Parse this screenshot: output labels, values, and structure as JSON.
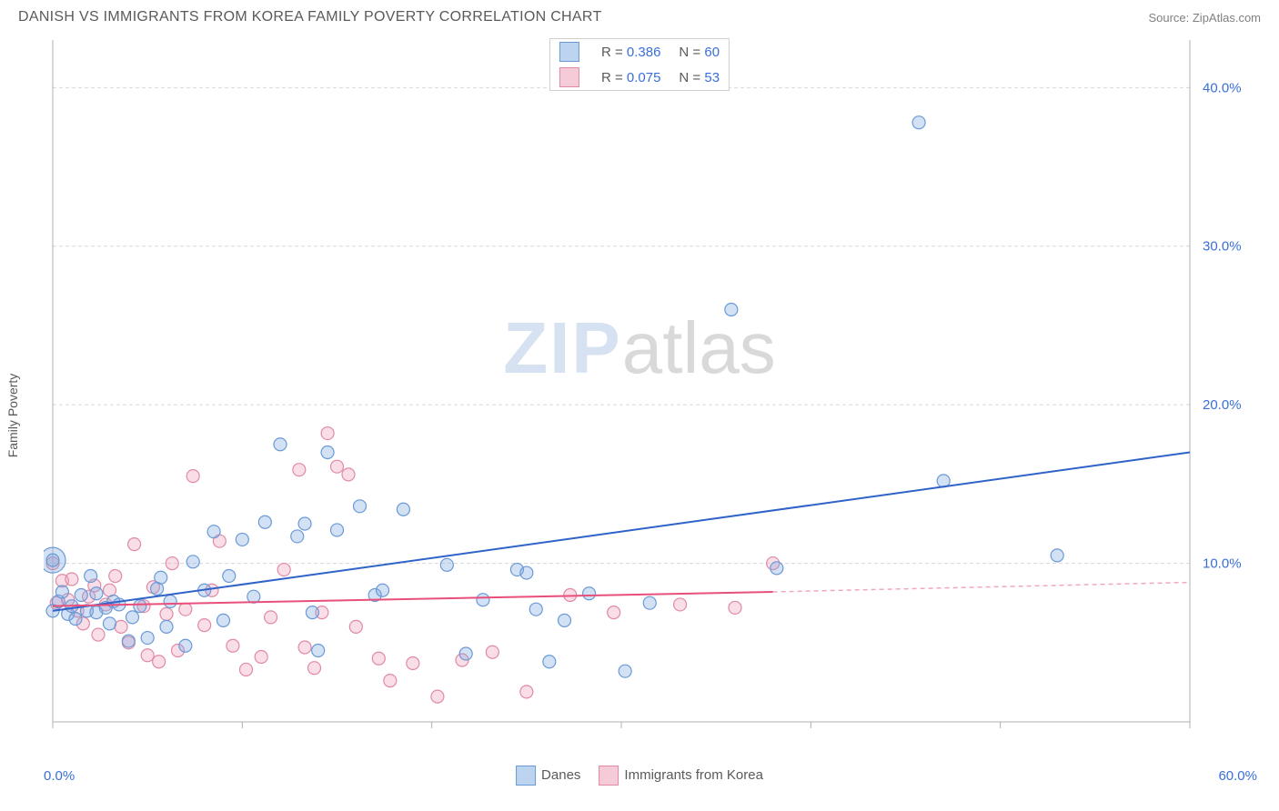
{
  "title": "DANISH VS IMMIGRANTS FROM KOREA FAMILY POVERTY CORRELATION CHART",
  "source": "Source: ZipAtlas.com",
  "ylabel": "Family Poverty",
  "watermark": {
    "part1": "ZIP",
    "part2": "atlas"
  },
  "chart": {
    "type": "scatter",
    "xlim": [
      0,
      60
    ],
    "ylim": [
      0,
      43
    ],
    "x_ticks": [
      0,
      10,
      20,
      30,
      40,
      50,
      60
    ],
    "x_tick_label_min": "0.0%",
    "x_tick_label_max": "60.0%",
    "y_ticks": [
      10,
      20,
      30,
      40
    ],
    "y_tick_labels": [
      "10.0%",
      "20.0%",
      "30.0%",
      "40.0%"
    ],
    "y_tick_color": "#3a6fd8",
    "y_tick_fontsize": 15,
    "grid_color": "#d8d8d8",
    "grid_dash": "4 3",
    "axis_color": "#b0b0b0",
    "background_color": "#ffffff",
    "marker_radius": 7,
    "marker_stroke_width": 1.2,
    "trend_line_width": 2,
    "series": {
      "danes": {
        "label": "Danes",
        "fill": "rgba(130, 170, 225, 0.35)",
        "stroke": "#6a9ad6",
        "swatch_fill": "#bcd4f0",
        "swatch_border": "#6a9ad6",
        "R": "0.386",
        "N": "60",
        "trend": {
          "x1": 0,
          "y1": 7.0,
          "x2": 60,
          "y2": 17.0,
          "color": "#2f63c9"
        },
        "points": [
          [
            0.0,
            7.0
          ],
          [
            0.0,
            10.2
          ],
          [
            0.3,
            7.6
          ],
          [
            0.5,
            8.2
          ],
          [
            0.8,
            6.8
          ],
          [
            1.0,
            7.3
          ],
          [
            1.2,
            6.5
          ],
          [
            1.5,
            8.0
          ],
          [
            1.8,
            7.0
          ],
          [
            2.0,
            9.2
          ],
          [
            2.3,
            6.9
          ],
          [
            2.3,
            8.1
          ],
          [
            2.8,
            7.2
          ],
          [
            3.0,
            6.2
          ],
          [
            3.2,
            7.6
          ],
          [
            3.5,
            7.4
          ],
          [
            4.0,
            5.1
          ],
          [
            4.2,
            6.6
          ],
          [
            4.6,
            7.3
          ],
          [
            5.0,
            5.3
          ],
          [
            5.5,
            8.4
          ],
          [
            5.7,
            9.1
          ],
          [
            6.0,
            6.0
          ],
          [
            6.2,
            7.6
          ],
          [
            7.0,
            4.8
          ],
          [
            7.4,
            10.1
          ],
          [
            8.0,
            8.3
          ],
          [
            8.5,
            12.0
          ],
          [
            9.0,
            6.4
          ],
          [
            9.3,
            9.2
          ],
          [
            10.0,
            11.5
          ],
          [
            10.6,
            7.9
          ],
          [
            11.2,
            12.6
          ],
          [
            12.0,
            17.5
          ],
          [
            12.9,
            11.7
          ],
          [
            13.3,
            12.5
          ],
          [
            13.7,
            6.9
          ],
          [
            14.0,
            4.5
          ],
          [
            14.5,
            17.0
          ],
          [
            15.0,
            12.1
          ],
          [
            16.2,
            13.6
          ],
          [
            17.0,
            8.0
          ],
          [
            17.4,
            8.3
          ],
          [
            18.5,
            13.4
          ],
          [
            20.8,
            9.9
          ],
          [
            21.8,
            4.3
          ],
          [
            22.7,
            7.7
          ],
          [
            24.5,
            9.6
          ],
          [
            25.0,
            9.4
          ],
          [
            25.5,
            7.1
          ],
          [
            26.2,
            3.8
          ],
          [
            27.0,
            6.4
          ],
          [
            28.3,
            8.1
          ],
          [
            30.2,
            3.2
          ],
          [
            31.5,
            7.5
          ],
          [
            35.8,
            26.0
          ],
          [
            38.2,
            9.7
          ],
          [
            45.7,
            37.8
          ],
          [
            47.0,
            15.2
          ],
          [
            53.0,
            10.5
          ]
        ]
      },
      "korea": {
        "label": "Immigrants from Korea",
        "fill": "rgba(240, 160, 185, 0.35)",
        "stroke": "#e08aa5",
        "swatch_fill": "#f6cbd8",
        "swatch_border": "#e08aa5",
        "R": "0.075",
        "N": "53",
        "trend": {
          "x1": 0,
          "y1": 7.3,
          "x2": 38,
          "y2": 8.2,
          "solid_color": "#e84f7a",
          "dash_to_x": 60,
          "dash_to_y": 8.8,
          "dash_color": "#f0a8bc"
        },
        "points": [
          [
            0.0,
            10.0
          ],
          [
            0.2,
            7.5
          ],
          [
            0.5,
            8.9
          ],
          [
            0.8,
            7.7
          ],
          [
            1.0,
            9.0
          ],
          [
            1.3,
            7.0
          ],
          [
            1.6,
            6.2
          ],
          [
            1.9,
            7.9
          ],
          [
            2.2,
            8.6
          ],
          [
            2.4,
            5.5
          ],
          [
            2.8,
            7.4
          ],
          [
            3.0,
            8.3
          ],
          [
            3.3,
            9.2
          ],
          [
            3.6,
            6.0
          ],
          [
            4.0,
            5.0
          ],
          [
            4.3,
            11.2
          ],
          [
            4.8,
            7.3
          ],
          [
            5.0,
            4.2
          ],
          [
            5.3,
            8.5
          ],
          [
            5.6,
            3.8
          ],
          [
            6.0,
            6.8
          ],
          [
            6.3,
            10.0
          ],
          [
            6.6,
            4.5
          ],
          [
            7.0,
            7.1
          ],
          [
            7.4,
            15.5
          ],
          [
            8.0,
            6.1
          ],
          [
            8.4,
            8.3
          ],
          [
            8.8,
            11.4
          ],
          [
            9.5,
            4.8
          ],
          [
            10.2,
            3.3
          ],
          [
            11.0,
            4.1
          ],
          [
            11.5,
            6.6
          ],
          [
            12.2,
            9.6
          ],
          [
            13.0,
            15.9
          ],
          [
            13.3,
            4.7
          ],
          [
            13.8,
            3.4
          ],
          [
            14.2,
            6.9
          ],
          [
            14.5,
            18.2
          ],
          [
            15.0,
            16.1
          ],
          [
            15.6,
            15.6
          ],
          [
            16.0,
            6.0
          ],
          [
            17.2,
            4.0
          ],
          [
            17.8,
            2.6
          ],
          [
            19.0,
            3.7
          ],
          [
            20.3,
            1.6
          ],
          [
            21.6,
            3.9
          ],
          [
            23.2,
            4.4
          ],
          [
            25.0,
            1.9
          ],
          [
            27.3,
            8.0
          ],
          [
            29.6,
            6.9
          ],
          [
            33.1,
            7.4
          ],
          [
            36.0,
            7.2
          ],
          [
            38.0,
            10.0
          ]
        ]
      }
    }
  },
  "legend_labels": {
    "R": "R = ",
    "N": "N = "
  }
}
